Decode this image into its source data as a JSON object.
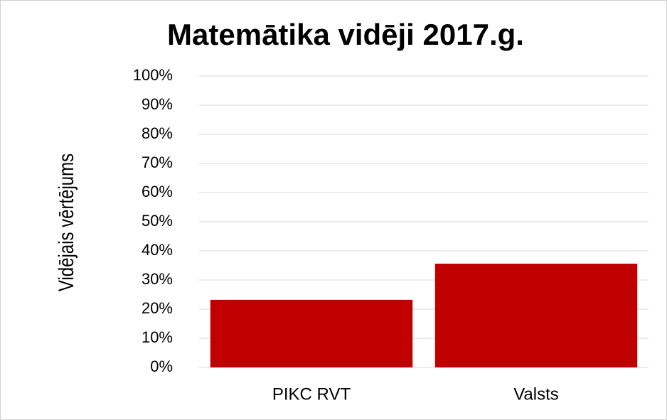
{
  "chart_data": {
    "type": "bar",
    "title": "Matemātika vidēji 2017.g.",
    "y_label": "Vidējais vērtējums",
    "categories": [
      "PIKC RVT",
      "Valsts"
    ],
    "values": [
      23.2,
      35.6
    ],
    "color": "#c00000",
    "ylim": [
      0,
      100
    ],
    "yticks": [
      {
        "value": 0,
        "label": "0%"
      },
      {
        "value": 10,
        "label": "10%"
      },
      {
        "value": 20,
        "label": "20%"
      },
      {
        "value": 30,
        "label": "30%"
      },
      {
        "value": 40,
        "label": "40%"
      },
      {
        "value": 50,
        "label": "50%"
      },
      {
        "value": 60,
        "label": "60%"
      },
      {
        "value": 70,
        "label": "70%"
      },
      {
        "value": 80,
        "label": "80%"
      },
      {
        "value": 90,
        "label": "90%"
      },
      {
        "value": 100,
        "label": "100%"
      }
    ],
    "grid": true
  }
}
